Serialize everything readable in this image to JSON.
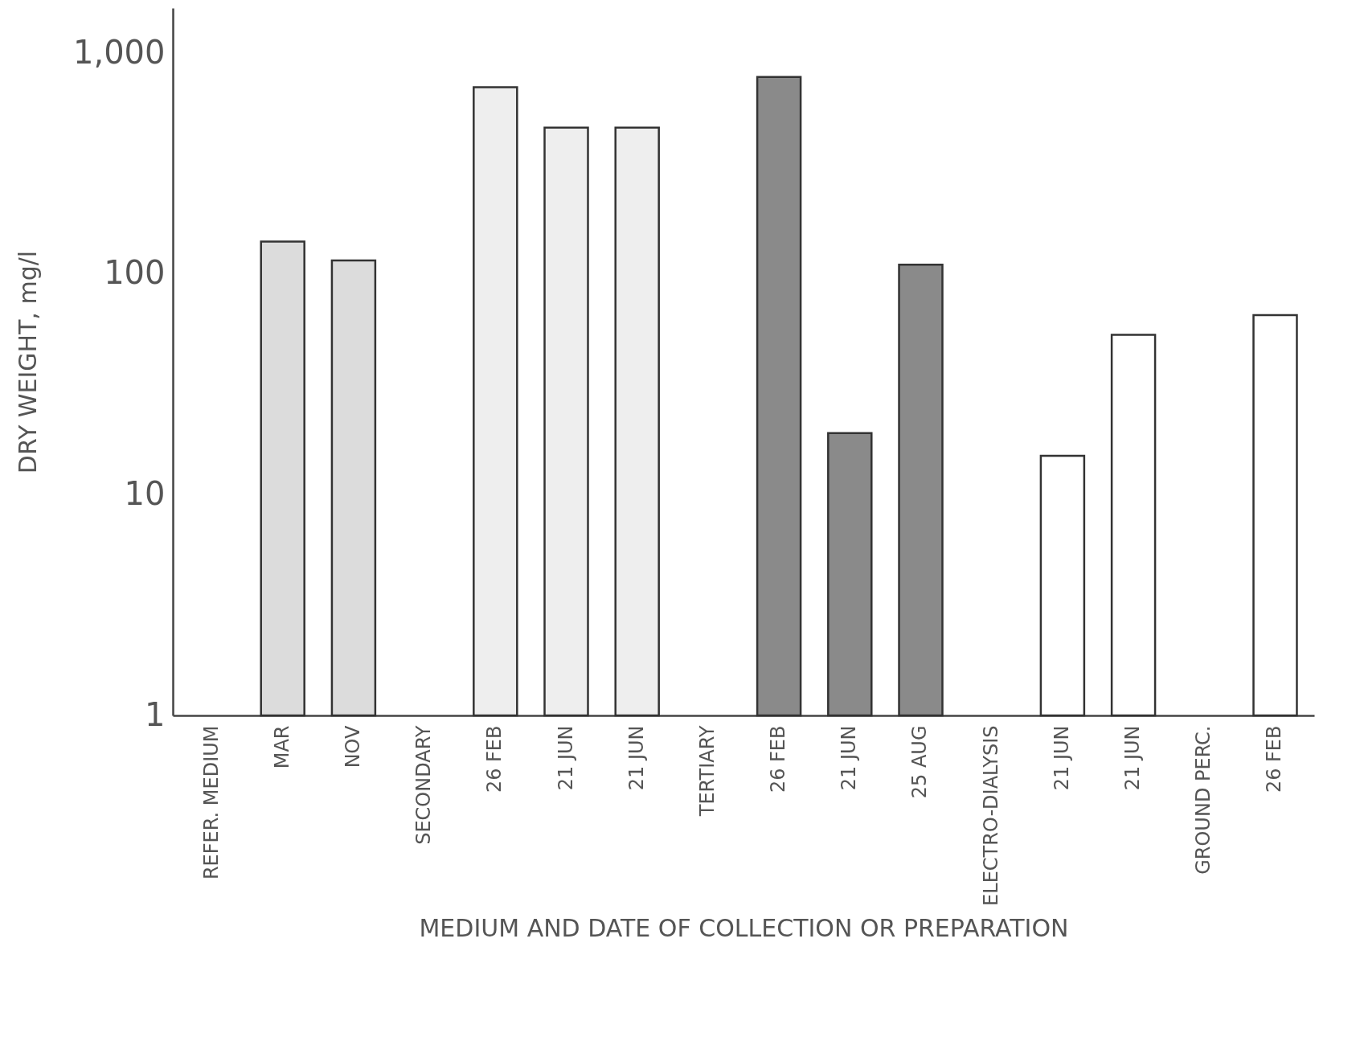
{
  "chart_data": {
    "type": "bar",
    "xlabel": "MEDIUM AND DATE OF COLLECTION OR PREPARATION",
    "ylabel": "DRY WEIGHT,  mg/l",
    "categories": [
      "REFER. MEDIUM",
      "MAR",
      "NOV",
      "SECONDARY",
      "26 FEB",
      "21 JUN",
      "21 JUN",
      "TERTIARY",
      "26 FEB",
      "21 JUN",
      "25 AUG",
      "ELECTRO-DIALYSIS",
      "21 JUN",
      "21 JUN",
      "GROUND PERC.",
      "26 FEB"
    ],
    "values": [
      null,
      140,
      115,
      null,
      700,
      460,
      460,
      null,
      780,
      19,
      110,
      null,
      15,
      53,
      null,
      65
    ],
    "colors": [
      null,
      "#dcdcdc",
      "#dcdcdc",
      null,
      "#eeeeee",
      "#eeeeee",
      "#eeeeee",
      null,
      "#8a8a8a",
      "#8a8a8a",
      "#8a8a8a",
      null,
      "#ffffff",
      "#ffffff",
      null,
      "#ffffff"
    ],
    "log": true,
    "ylim": [
      1,
      1600
    ],
    "yticks": [
      1,
      10,
      100,
      {
        "value": 1000,
        "label": "1,000"
      }
    ],
    "grid": false
  }
}
